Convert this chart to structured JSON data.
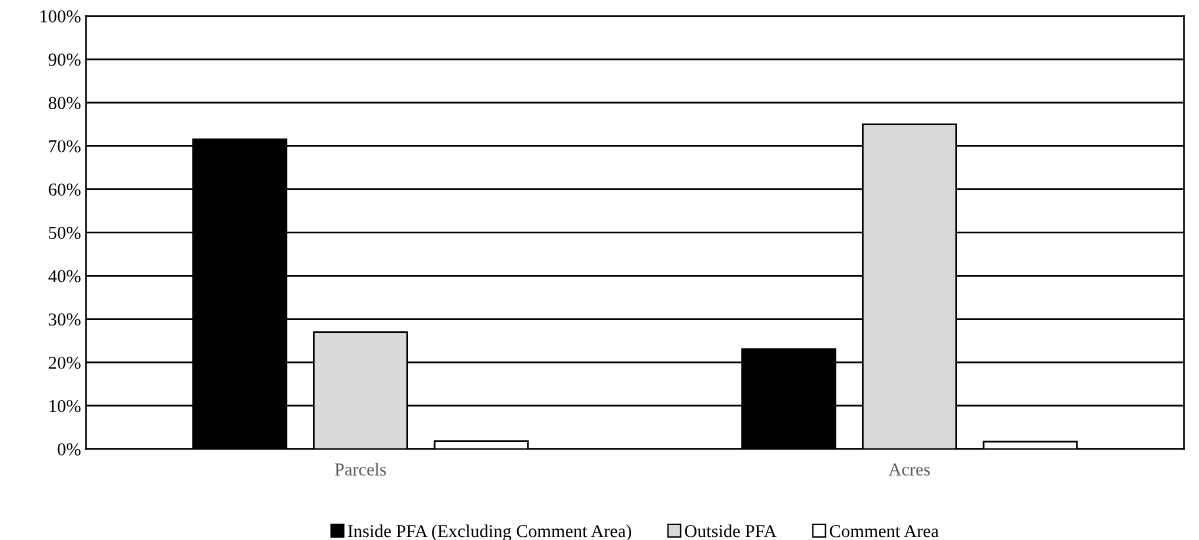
{
  "chart_data": {
    "type": "bar",
    "categories": [
      "Parcels",
      "Acres"
    ],
    "series": [
      {
        "name": "Inside PFA (Excluding Comment Area)",
        "color": "#000000",
        "values": [
          71.5,
          23.1
        ]
      },
      {
        "name": "Outside PFA",
        "color": "#d9d9d9",
        "values": [
          27.0,
          75.0
        ]
      },
      {
        "name": "Comment Area",
        "color": "#ffffff",
        "values": [
          1.8,
          1.7
        ]
      }
    ],
    "ylim": [
      0,
      100
    ],
    "yticks": [
      {
        "value": 0,
        "label": "0%"
      },
      {
        "value": 10,
        "label": "10%"
      },
      {
        "value": 20,
        "label": "20%"
      },
      {
        "value": 30,
        "label": "30%"
      },
      {
        "value": 40,
        "label": "40%"
      },
      {
        "value": 50,
        "label": "50%"
      },
      {
        "value": 60,
        "label": "60%"
      },
      {
        "value": 70,
        "label": "70%"
      },
      {
        "value": 80,
        "label": "80%"
      },
      {
        "value": 90,
        "label": "90%"
      },
      {
        "value": 100,
        "label": "100%"
      }
    ],
    "grid": "y",
    "legend": "bottom"
  }
}
